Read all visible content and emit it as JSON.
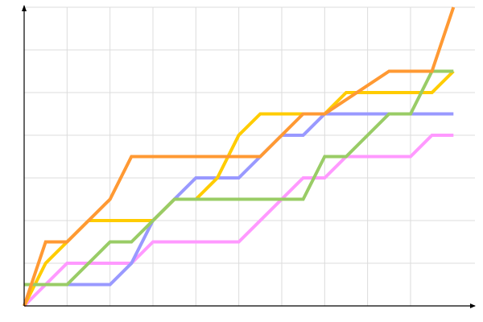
{
  "chart_data": {
    "type": "line",
    "title": "",
    "xlabel": "",
    "ylabel": "",
    "xlim": [
      0,
      10.5
    ],
    "ylim": [
      0,
      7
    ],
    "grid": true,
    "grid_step": 1,
    "tick_labels": false,
    "legend": "none",
    "series": [
      {
        "color": "#ff99ff",
        "points": [
          [
            0,
            0
          ],
          [
            1,
            1
          ],
          [
            2.5,
            1
          ],
          [
            3,
            1.5
          ],
          [
            5,
            1.5
          ],
          [
            6.5,
            3
          ],
          [
            7,
            3
          ],
          [
            7.5,
            3.5
          ],
          [
            9,
            3.5
          ],
          [
            9.5,
            4
          ],
          [
            10,
            4
          ]
        ]
      },
      {
        "color": "#9999ff",
        "points": [
          [
            0,
            0.5
          ],
          [
            2,
            0.5
          ],
          [
            2.5,
            1
          ],
          [
            3,
            2
          ],
          [
            4,
            3
          ],
          [
            5,
            3
          ],
          [
            5.5,
            3.5
          ],
          [
            6,
            4
          ],
          [
            6.5,
            4
          ],
          [
            7,
            4.5
          ],
          [
            10,
            4.5
          ]
        ]
      },
      {
        "color": "#ffcc00",
        "points": [
          [
            0,
            0
          ],
          [
            0.5,
            1
          ],
          [
            1.5,
            2
          ],
          [
            3,
            2
          ],
          [
            3.5,
            2.5
          ],
          [
            4,
            2.5
          ],
          [
            4.5,
            3
          ],
          [
            5,
            4
          ],
          [
            5.5,
            4.5
          ],
          [
            7,
            4.5
          ],
          [
            7.5,
            5
          ],
          [
            9.5,
            5
          ],
          [
            10,
            5.5
          ]
        ]
      },
      {
        "color": "#99cc66",
        "points": [
          [
            0,
            0.5
          ],
          [
            1,
            0.5
          ],
          [
            2,
            1.5
          ],
          [
            2.5,
            1.5
          ],
          [
            3.5,
            2.5
          ],
          [
            6.5,
            2.5
          ],
          [
            7,
            3.5
          ],
          [
            7.5,
            3.5
          ],
          [
            8.5,
            4.5
          ],
          [
            9,
            4.5
          ],
          [
            9.5,
            5.5
          ],
          [
            10,
            5.5
          ]
        ]
      },
      {
        "color": "#ff9933",
        "points": [
          [
            0,
            0
          ],
          [
            0.5,
            1.5
          ],
          [
            1,
            1.5
          ],
          [
            2,
            2.5
          ],
          [
            2.5,
            3.5
          ],
          [
            5.5,
            3.5
          ],
          [
            6.5,
            4.5
          ],
          [
            7,
            4.5
          ],
          [
            8.5,
            5.5
          ],
          [
            9.5,
            5.5
          ],
          [
            10,
            7
          ]
        ]
      }
    ]
  }
}
